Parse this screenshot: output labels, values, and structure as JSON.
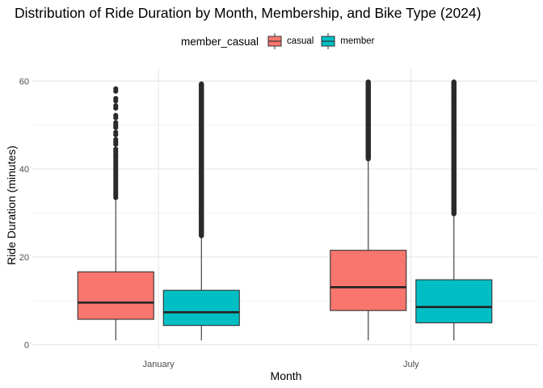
{
  "chart_data": {
    "type": "boxplot",
    "title": "Distribution of Ride Duration by Month, Membership, and Bike Type (2024)",
    "xlabel": "Month",
    "ylabel": "Ride Duration (minutes)",
    "categories": [
      "January",
      "July"
    ],
    "y_ticks": [
      0,
      20,
      40,
      60
    ],
    "ylim": [
      -1,
      63
    ],
    "grid": true,
    "legend": {
      "title": "member_casual",
      "position": "top",
      "entries": [
        {
          "name": "casual",
          "color": "#F8766D"
        },
        {
          "name": "member",
          "color": "#00BFC4"
        }
      ]
    },
    "series": [
      {
        "name": "casual",
        "color": "#F8766D",
        "boxes": [
          {
            "category": "January",
            "min": 1,
            "q1": 5.8,
            "median": 9.6,
            "q3": 16.6,
            "whisker_high": 33,
            "outliers_from": 33.5,
            "outliers_to": 58.3,
            "sparse_outliers": true
          },
          {
            "category": "July",
            "min": 1,
            "q1": 7.8,
            "median": 13.1,
            "q3": 21.5,
            "whisker_high": 42,
            "outliers_from": 42.3,
            "outliers_to": 59.9,
            "sparse_outliers": false
          }
        ]
      },
      {
        "name": "member",
        "color": "#00BFC4",
        "boxes": [
          {
            "category": "January",
            "min": 1,
            "q1": 4.4,
            "median": 7.4,
            "q3": 12.4,
            "whisker_high": 24.5,
            "outliers_from": 24.8,
            "outliers_to": 59.4,
            "sparse_outliers": false
          },
          {
            "category": "July",
            "min": 1,
            "q1": 5.0,
            "median": 8.6,
            "q3": 14.8,
            "whisker_high": 29.5,
            "outliers_from": 29.8,
            "outliers_to": 59.8,
            "sparse_outliers": false
          }
        ]
      }
    ]
  }
}
